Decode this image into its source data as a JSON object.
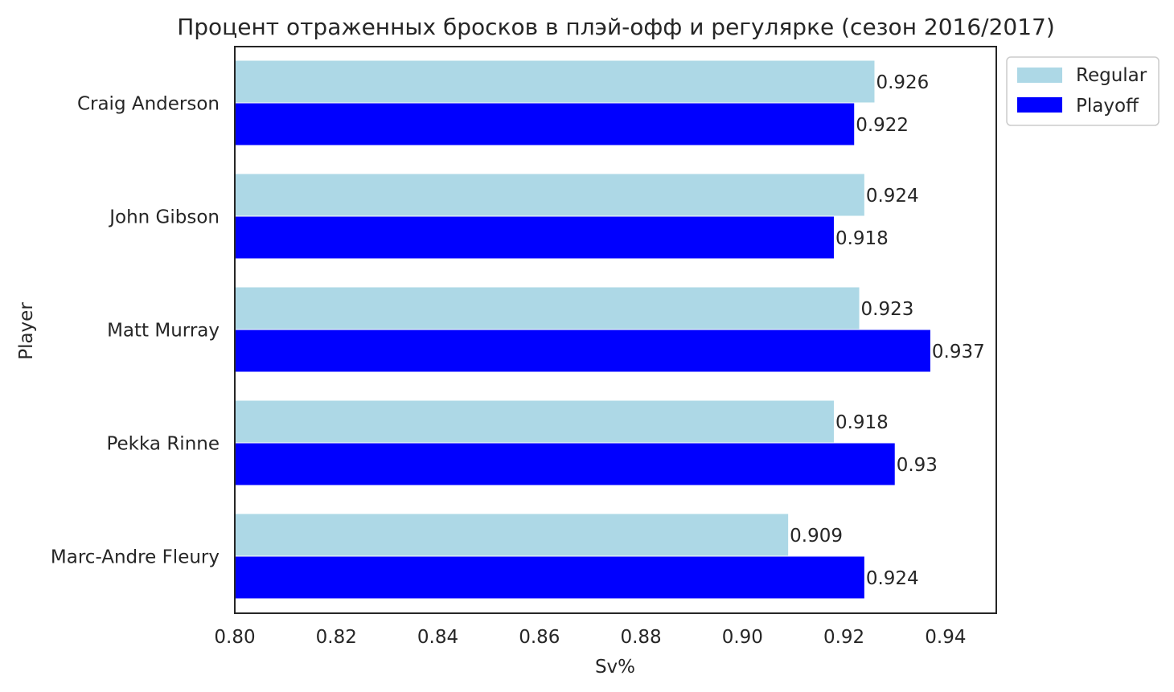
{
  "chart_data": {
    "type": "bar",
    "orientation": "horizontal",
    "title": "Процент отраженных бросков в плэй-офф и регулярке (сезон 2016/2017)",
    "xlabel": "Sv%",
    "ylabel": "Player",
    "xlim": [
      0.8,
      0.95
    ],
    "x_ticks": [
      "0.80",
      "0.82",
      "0.84",
      "0.86",
      "0.88",
      "0.90",
      "0.92",
      "0.94"
    ],
    "x_tick_values": [
      0.8,
      0.82,
      0.84,
      0.86,
      0.88,
      0.9,
      0.92,
      0.94
    ],
    "categories": [
      "Craig Anderson",
      "John Gibson",
      "Matt Murray",
      "Pekka Rinne",
      "Marc-Andre Fleury"
    ],
    "series": [
      {
        "name": "Regular",
        "color": "#add8e6",
        "values": [
          0.926,
          0.924,
          0.923,
          0.918,
          0.909
        ],
        "labels": [
          "0.926",
          "0.924",
          "0.923",
          "0.918",
          "0.909"
        ]
      },
      {
        "name": "Playoff",
        "color": "#0000ff",
        "values": [
          0.922,
          0.918,
          0.937,
          0.93,
          0.924
        ],
        "labels": [
          "0.922",
          "0.918",
          "0.937",
          "0.93",
          "0.924"
        ]
      }
    ],
    "grid": false,
    "legend_position": "outside-top-right"
  }
}
